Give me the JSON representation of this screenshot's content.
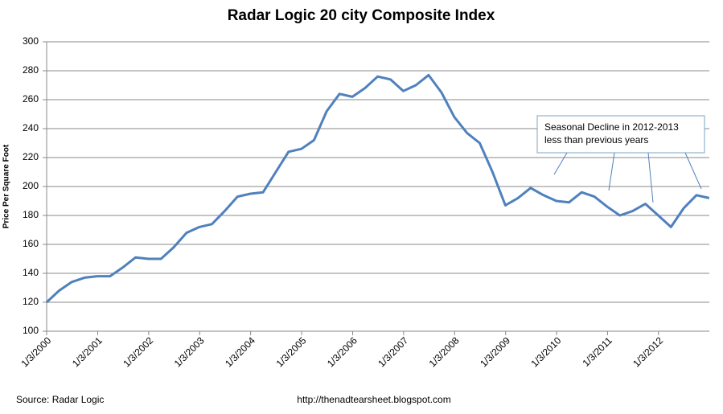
{
  "chart_data": {
    "type": "line",
    "title": "Radar Logic 20 city Composite Index",
    "y_label": "Price Per Square Foot",
    "source": "Source:  Radar Logic",
    "url": "http://thenadtearsheet.blogspot.com",
    "annotation": [
      "Seasonal Decline in 2012-2013",
      "less than previous years"
    ],
    "grid": true,
    "x": [
      "2000-01-03",
      "2000-04-01",
      "2000-07-01",
      "2000-10-01",
      "2001-01-01",
      "2001-04-01",
      "2001-07-01",
      "2001-10-01",
      "2002-01-01",
      "2002-04-01",
      "2002-07-01",
      "2002-10-01",
      "2003-01-01",
      "2003-04-01",
      "2003-07-01",
      "2003-10-01",
      "2004-01-01",
      "2004-04-01",
      "2004-07-01",
      "2004-10-01",
      "2005-01-01",
      "2005-04-01",
      "2005-07-01",
      "2005-10-01",
      "2006-01-01",
      "2006-04-01",
      "2006-07-01",
      "2006-10-01",
      "2007-01-01",
      "2007-04-01",
      "2007-07-01",
      "2007-10-01",
      "2008-01-01",
      "2008-04-01",
      "2008-07-01",
      "2008-10-01",
      "2009-01-01",
      "2009-04-01",
      "2009-07-01",
      "2009-10-01",
      "2010-01-01",
      "2010-04-01",
      "2010-07-01",
      "2010-10-01",
      "2011-01-01",
      "2011-04-01",
      "2011-07-01",
      "2011-10-01",
      "2012-01-01",
      "2012-04-01",
      "2012-07-01",
      "2012-10-01",
      "2012-12-31"
    ],
    "series": [
      {
        "name": "Composite Index",
        "color": "#4f81bd",
        "values": [
          120,
          128,
          134,
          137,
          138,
          138,
          144,
          151,
          150,
          150,
          158,
          168,
          172,
          174,
          183,
          193,
          195,
          196,
          210,
          224,
          226,
          232,
          252,
          264,
          262,
          268,
          276,
          274,
          266,
          270,
          277,
          265,
          248,
          237,
          230,
          210,
          187,
          192,
          199,
          194,
          190,
          189,
          196,
          193,
          186,
          180,
          183,
          188,
          180,
          172,
          185,
          194,
          192
        ]
      }
    ],
    "xlim": [
      "2000-01-03",
      "2013-01-01"
    ],
    "xticks": [
      {
        "value": "2000-01-03",
        "label": "1/3/2000"
      },
      {
        "value": "2001-01-03",
        "label": "1/3/2001"
      },
      {
        "value": "2002-01-03",
        "label": "1/3/2002"
      },
      {
        "value": "2003-01-03",
        "label": "1/3/2003"
      },
      {
        "value": "2004-01-03",
        "label": "1/3/2004"
      },
      {
        "value": "2005-01-03",
        "label": "1/3/2005"
      },
      {
        "value": "2006-01-03",
        "label": "1/3/2006"
      },
      {
        "value": "2007-01-03",
        "label": "1/3/2007"
      },
      {
        "value": "2008-01-03",
        "label": "1/3/2008"
      },
      {
        "value": "2009-01-03",
        "label": "1/3/2009"
      },
      {
        "value": "2010-01-03",
        "label": "1/3/2010"
      },
      {
        "value": "2011-01-03",
        "label": "1/3/2011"
      },
      {
        "value": "2012-01-03",
        "label": "1/3/2012"
      }
    ],
    "ylim": [
      100,
      300
    ],
    "yticks": [
      100,
      120,
      140,
      160,
      180,
      200,
      220,
      240,
      260,
      280,
      300
    ]
  }
}
